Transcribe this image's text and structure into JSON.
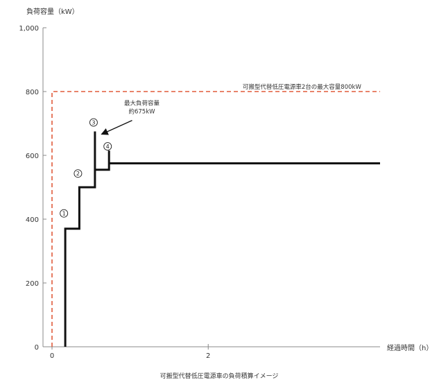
{
  "chart_data": {
    "type": "line",
    "title": "",
    "ylabel": "負荷容量（kW）",
    "xlabel": "経過時間（h）",
    "caption": "可搬型代替低圧電源車の負荷積算イメージ",
    "xlim": [
      0,
      4.2
    ],
    "ylim": [
      0,
      1000
    ],
    "y_ticks": [
      0,
      200,
      400,
      600,
      800,
      1000
    ],
    "y_tick_labels": [
      "0",
      "200",
      "400",
      "600",
      "800",
      "1,000"
    ],
    "x_ticks": [
      0,
      2
    ],
    "x_tick_labels": [
      "0",
      "2"
    ],
    "grid": false,
    "series": [
      {
        "name": "",
        "color": "#111111",
        "style": "solid",
        "points": [
          [
            0.17,
            0
          ],
          [
            0.17,
            370
          ],
          [
            0.35,
            370
          ],
          [
            0.35,
            500
          ],
          [
            0.55,
            500
          ],
          [
            0.55,
            675
          ],
          [
            0.55,
            555
          ],
          [
            0.73,
            555
          ],
          [
            0.73,
            615
          ],
          [
            0.73,
            575
          ],
          [
            4.2,
            575
          ]
        ]
      },
      {
        "name": "可搬型代替低圧電源車2台の最大容量800kW",
        "color": "#e05a3a",
        "style": "dashed",
        "points": [
          [
            0,
            0
          ],
          [
            0,
            800
          ],
          [
            4.2,
            800
          ]
        ]
      }
    ],
    "step_markers": [
      {
        "label": "①",
        "x": 0.17,
        "y": 405
      },
      {
        "label": "②",
        "x": 0.35,
        "y": 530
      },
      {
        "label": "③",
        "x": 0.55,
        "y": 690
      },
      {
        "label": "④",
        "x": 0.73,
        "y": 615
      }
    ],
    "annotations": [
      {
        "lines": [
          "最大負荷容量",
          "約675kW"
        ],
        "x": 1.15,
        "y": 740,
        "arrow_to": [
          0.6,
          675
        ]
      }
    ],
    "dashed_label": {
      "text": "可搬型代替低圧電源車2台の最大容量800kW",
      "x": 3.2,
      "y": 820
    }
  }
}
